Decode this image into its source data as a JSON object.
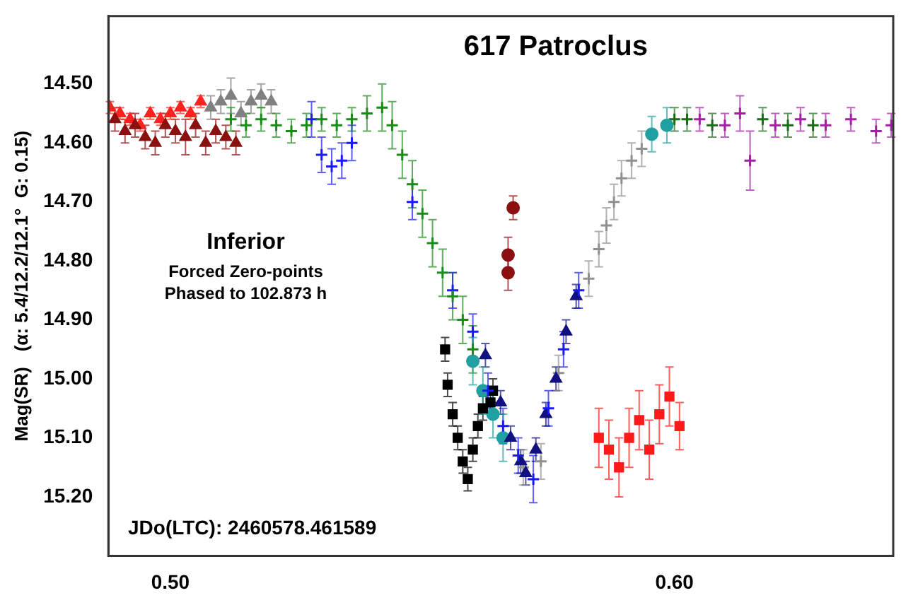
{
  "chart_data": {
    "type": "scatter",
    "title": "617 Patroclus",
    "ylabel": "Mag(SR)   (α: 5.4/12.2/12.1°  G: 0.15)",
    "annotations": [
      "Inferior",
      "Forced Zero-points",
      "Phased to 102.873 h",
      "JDo(LTC): 2460578.461589"
    ],
    "xlim": [
      0.4877,
      0.6434
    ],
    "xticks": [
      {
        "value": 0.5,
        "label": "0.50"
      },
      {
        "value": 0.6,
        "label": "0.60"
      }
    ],
    "ylim": [
      15.3,
      14.385
    ],
    "yticks": [
      {
        "value": 14.5,
        "label": "14.50"
      },
      {
        "value": 14.6,
        "label": "14.60"
      },
      {
        "value": 14.7,
        "label": "14.70"
      },
      {
        "value": 14.8,
        "label": "14.80"
      },
      {
        "value": 14.9,
        "label": "14.90"
      },
      {
        "value": 15.0,
        "label": "15.00"
      },
      {
        "value": 15.1,
        "label": "15.10"
      },
      {
        "value": 15.2,
        "label": "15.20"
      }
    ],
    "grid": false,
    "legend": false,
    "series": [
      {
        "color": "#8b1010",
        "marker": "triangle",
        "x": [
          0.489,
          0.491,
          0.493,
          0.495,
          0.497,
          0.499,
          0.501,
          0.503,
          0.505,
          0.507,
          0.509,
          0.511,
          0.513
        ],
        "values": [
          14.56,
          14.58,
          14.57,
          14.59,
          14.6,
          14.57,
          14.58,
          14.59,
          14.57,
          14.6,
          14.58,
          14.59,
          14.6
        ],
        "errors": [
          0.02,
          0.02,
          0.02,
          0.02,
          0.02,
          0.02,
          0.02,
          0.03,
          0.02,
          0.02,
          0.02,
          0.02,
          0.02
        ]
      },
      {
        "color": "#ff2020",
        "marker": "triangle",
        "x": [
          0.488,
          0.49,
          0.492,
          0.494,
          0.496,
          0.498,
          0.5,
          0.502,
          0.504,
          0.506
        ],
        "values": [
          14.54,
          14.55,
          14.56,
          14.57,
          14.55,
          14.56,
          14.55,
          14.54,
          14.55,
          14.53
        ],
        "errors": [
          0.01,
          0.01,
          0.01,
          0.01,
          0.01,
          0.01,
          0.01,
          0.01,
          0.01,
          0.01
        ]
      },
      {
        "color": "#808080",
        "marker": "triangle",
        "x": [
          0.508,
          0.51,
          0.512,
          0.514,
          0.516,
          0.518,
          0.52
        ],
        "values": [
          14.54,
          14.53,
          14.52,
          14.55,
          14.53,
          14.52,
          14.53
        ],
        "errors": [
          0.02,
          0.02,
          0.03,
          0.02,
          0.02,
          0.02,
          0.02
        ]
      },
      {
        "color": "#1a8a1a",
        "marker": "cross",
        "x": [
          0.512,
          0.515,
          0.518,
          0.521,
          0.524,
          0.527,
          0.53,
          0.533,
          0.536,
          0.539,
          0.542,
          0.544,
          0.546,
          0.548,
          0.55,
          0.552,
          0.554,
          0.556,
          0.558,
          0.56
        ],
        "values": [
          14.56,
          14.57,
          14.56,
          14.57,
          14.58,
          14.57,
          14.56,
          14.57,
          14.56,
          14.55,
          14.54,
          14.57,
          14.62,
          14.67,
          14.72,
          14.77,
          14.82,
          14.86,
          14.9,
          14.95
        ],
        "errors": [
          0.02,
          0.02,
          0.02,
          0.02,
          0.02,
          0.02,
          0.02,
          0.02,
          0.02,
          0.03,
          0.04,
          0.04,
          0.04,
          0.04,
          0.04,
          0.04,
          0.04,
          0.04,
          0.04,
          0.04
        ]
      },
      {
        "color": "#1a1aff",
        "marker": "cross",
        "x": [
          0.528,
          0.53,
          0.532,
          0.534,
          0.536,
          0.548,
          0.556,
          0.56,
          0.563,
          0.566,
          0.569,
          0.572,
          0.575,
          0.578,
          0.581
        ],
        "values": [
          14.56,
          14.62,
          14.64,
          14.63,
          14.6,
          14.7,
          14.85,
          14.92,
          15.02,
          15.08,
          15.13,
          15.17,
          15.05,
          14.95,
          14.85
        ],
        "errors": [
          0.03,
          0.03,
          0.03,
          0.03,
          0.03,
          0.03,
          0.03,
          0.03,
          0.03,
          0.03,
          0.03,
          0.04,
          0.03,
          0.03,
          0.03
        ]
      },
      {
        "color": "#8b1010",
        "marker": "circle",
        "x": [
          0.567,
          0.567,
          0.568
        ],
        "values": [
          14.82,
          14.79,
          14.71
        ],
        "errors": [
          0.03,
          0.03,
          0.02
        ]
      },
      {
        "color": "#000000",
        "marker": "square",
        "x": [
          0.5545,
          0.555,
          0.556,
          0.557,
          0.558,
          0.559,
          0.56,
          0.561,
          0.562,
          0.5635,
          0.564
        ],
        "values": [
          14.95,
          15.01,
          15.06,
          15.1,
          15.14,
          15.17,
          15.12,
          15.08,
          15.05,
          15.04,
          15.02
        ],
        "errors": [
          0.02,
          0.02,
          0.02,
          0.02,
          0.02,
          0.02,
          0.02,
          0.02,
          0.02,
          0.02,
          0.02
        ]
      },
      {
        "color": "#101080",
        "marker": "triangle",
        "x": [
          0.5625,
          0.5655,
          0.5675,
          0.5695,
          0.5705,
          0.5725,
          0.5745,
          0.5765,
          0.5785,
          0.5805
        ],
        "values": [
          14.96,
          15.04,
          15.1,
          15.14,
          15.16,
          15.12,
          15.06,
          15.0,
          14.92,
          14.86
        ],
        "errors": [
          0.02,
          0.02,
          0.02,
          0.02,
          0.02,
          0.02,
          0.02,
          0.02,
          0.02,
          0.02
        ]
      },
      {
        "color": "#20a0a0",
        "marker": "circle",
        "x": [
          0.56,
          0.562,
          0.564,
          0.566,
          0.5955,
          0.5985
        ],
        "values": [
          14.97,
          15.02,
          15.06,
          15.1,
          14.585,
          14.57
        ],
        "errors": [
          0.04,
          0.04,
          0.04,
          0.04,
          0.03,
          0.03
        ]
      },
      {
        "color": "#909090",
        "marker": "cross",
        "x": [
          0.57,
          0.5735,
          0.577,
          0.583,
          0.585,
          0.5865,
          0.588,
          0.5895,
          0.5915,
          0.5935
        ],
        "values": [
          15.15,
          15.14,
          14.99,
          14.83,
          14.78,
          14.74,
          14.7,
          14.66,
          14.63,
          14.61
        ],
        "errors": [
          0.03,
          0.03,
          0.03,
          0.03,
          0.03,
          0.03,
          0.03,
          0.03,
          0.03,
          0.03
        ]
      },
      {
        "color": "#ff1a1a",
        "marker": "square",
        "x": [
          0.585,
          0.587,
          0.589,
          0.591,
          0.593,
          0.595,
          0.597,
          0.599,
          0.601
        ],
        "values": [
          15.1,
          15.12,
          15.15,
          15.1,
          15.07,
          15.12,
          15.06,
          15.03,
          15.08
        ],
        "errors": [
          0.05,
          0.05,
          0.05,
          0.05,
          0.05,
          0.05,
          0.05,
          0.05,
          0.04
        ]
      },
      {
        "color": "#1a6a1a",
        "marker": "cross",
        "x": [
          0.6,
          0.6025,
          0.6075,
          0.6175,
          0.6225,
          0.6275
        ],
        "values": [
          14.56,
          14.56,
          14.57,
          14.56,
          14.57,
          14.57
        ],
        "errors": [
          0.02,
          0.02,
          0.02,
          0.02,
          0.02,
          0.02
        ]
      },
      {
        "color": "#a020a0",
        "marker": "cross",
        "x": [
          0.605,
          0.61,
          0.613,
          0.615,
          0.62,
          0.625,
          0.63,
          0.635,
          0.64,
          0.643
        ],
        "values": [
          14.56,
          14.57,
          14.55,
          14.63,
          14.57,
          14.56,
          14.57,
          14.56,
          14.58,
          14.57
        ],
        "errors": [
          0.02,
          0.02,
          0.03,
          0.05,
          0.02,
          0.02,
          0.02,
          0.02,
          0.02,
          0.02
        ]
      }
    ]
  }
}
